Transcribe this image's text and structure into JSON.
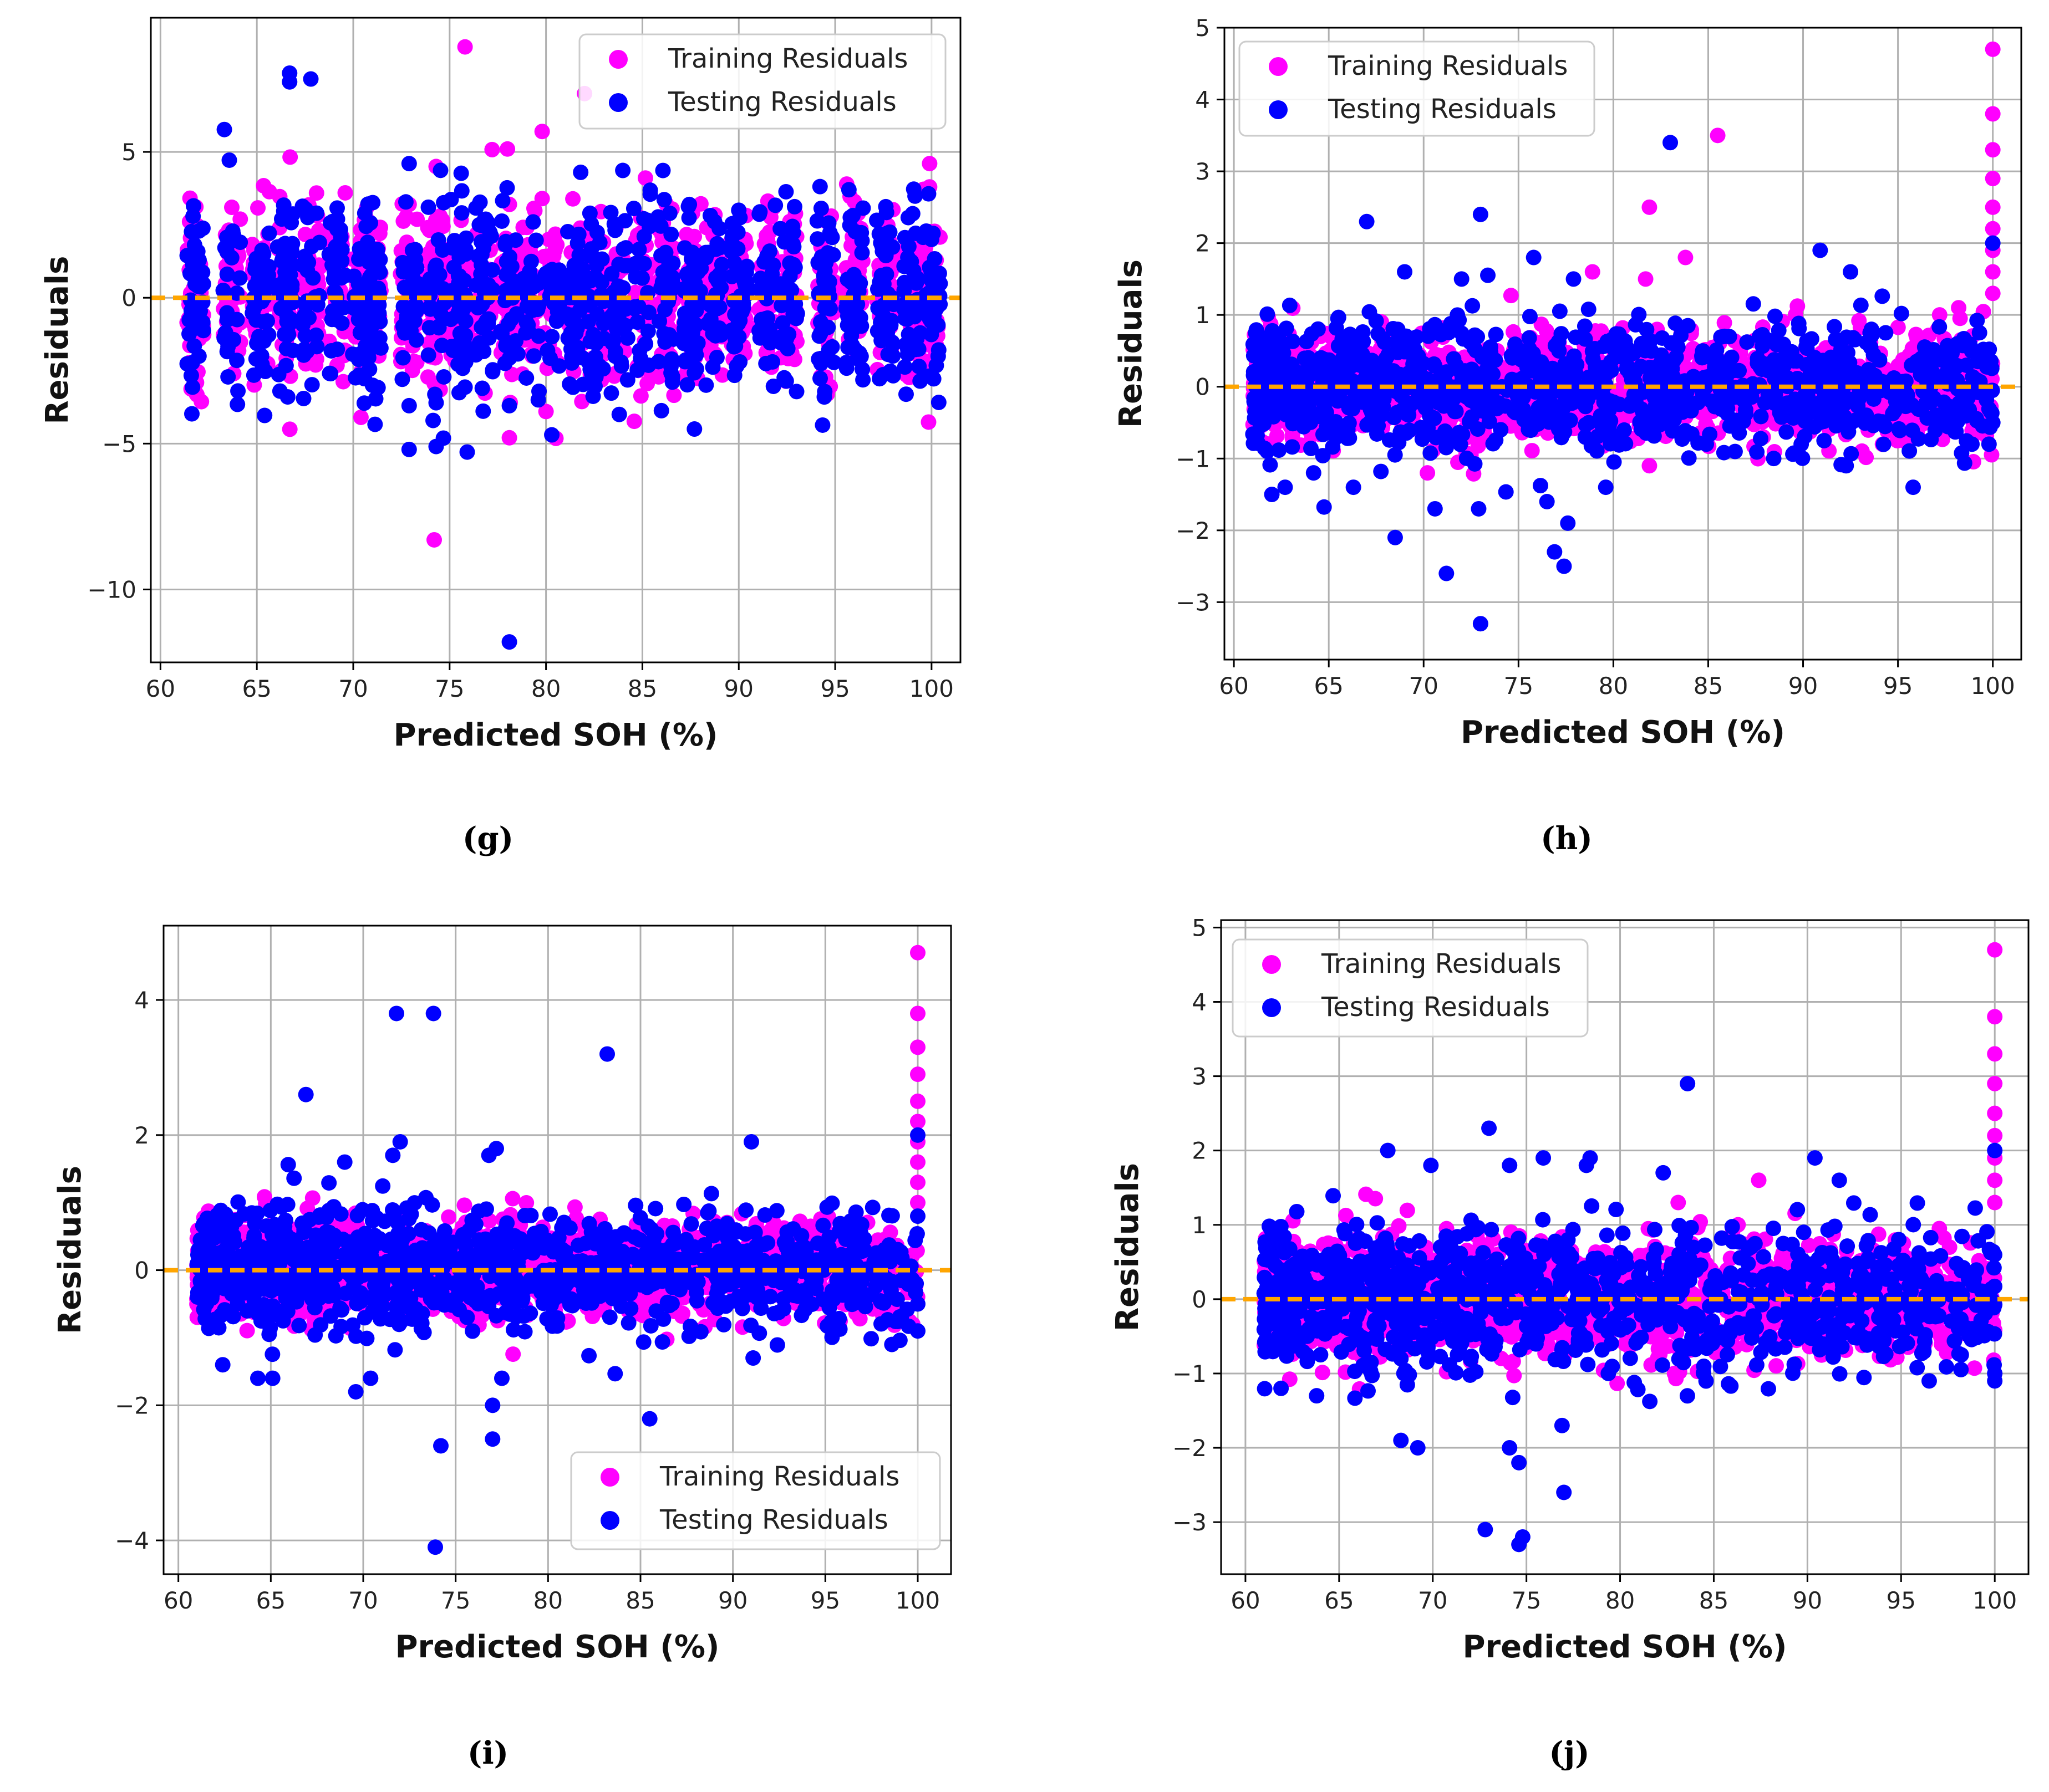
{
  "figure": {
    "captions": [
      "(g)",
      "(h)",
      "(i)",
      "(j)"
    ]
  },
  "colors": {
    "training": "#ff00ff",
    "testing": "#0000ff",
    "zero_line": "#ffa500",
    "grid": "#b0b0b0",
    "axis": "#000000"
  },
  "chart_data": [
    {
      "id": "g",
      "type": "scatter",
      "xlabel": "Predicted SOH (%)",
      "ylabel": "Residuals",
      "xlim": [
        59.5,
        101.5
      ],
      "ylim": [
        -12.5,
        9.6
      ],
      "xticks": [
        60,
        65,
        70,
        75,
        80,
        85,
        90,
        95,
        100
      ],
      "yticks": [
        -10,
        -5,
        0,
        5
      ],
      "ytick_labels": [
        "−10",
        "−5",
        "0",
        "5"
      ],
      "grid": true,
      "legend": "top-right",
      "zero_line": 0,
      "band_scale": 1.6,
      "series": [
        {
          "name": "Training Residuals",
          "color": "training",
          "points": [
            [
              75.8,
              8.6
            ],
            [
              74.2,
              -8.3
            ],
            [
              82.0,
              7.0
            ],
            [
              78.0,
              5.1
            ],
            [
              79.8,
              5.7
            ],
            [
              74.3,
              4.5
            ],
            [
              79.8,
              3.4
            ],
            [
              78.1,
              3.2
            ],
            [
              78.1,
              -4.8
            ],
            [
              70.4,
              -4.1
            ],
            [
              80.0,
              -3.9
            ],
            [
              87.6,
              2.9
            ],
            [
              96.0,
              3.3
            ],
            [
              99.9,
              4.6
            ],
            [
              99.9,
              3.8
            ],
            [
              63.7,
              3.1
            ],
            [
              72.9,
              3.2
            ],
            [
              74.5,
              2.8
            ],
            [
              94.8,
              2.8
            ],
            [
              87.6,
              -2.5
            ],
            [
              83.6,
              -2.6
            ],
            [
              63.8,
              -2.6
            ]
          ]
        },
        {
          "name": "Testing Residuals",
          "color": "testing",
          "points": [
            [
              66.7,
              7.7
            ],
            [
              66.7,
              7.4
            ],
            [
              67.8,
              7.5
            ],
            [
              72.9,
              4.6
            ],
            [
              81.8,
              4.3
            ],
            [
              78.1,
              -11.8
            ],
            [
              72.9,
              -5.2
            ],
            [
              74.3,
              -5.1
            ],
            [
              78.1,
              -3.7
            ],
            [
              79.6,
              -3.5
            ],
            [
              80.3,
              -4.7
            ],
            [
              83.8,
              -4.0
            ],
            [
              87.7,
              -4.5
            ],
            [
              72.9,
              -3.7
            ],
            [
              74.3,
              -3.6
            ],
            [
              66.6,
              -3.4
            ],
            [
              66.2,
              -3.2
            ],
            [
              71.0,
              -3.0
            ],
            [
              68.1,
              2.9
            ],
            [
              70.6,
              2.9
            ],
            [
              90.0,
              3.0
            ],
            [
              97.6,
              2.1
            ],
            [
              100.0,
              2.0
            ]
          ]
        }
      ]
    },
    {
      "id": "h",
      "type": "scatter",
      "xlabel": "Predicted SOH (%)",
      "ylabel": "Residuals",
      "xlim": [
        59.5,
        101.5
      ],
      "ylim": [
        -3.8,
        5.0
      ],
      "xticks": [
        60,
        65,
        70,
        75,
        80,
        85,
        90,
        95,
        100
      ],
      "yticks": [
        -3,
        -2,
        -1,
        0,
        1,
        2,
        3,
        4,
        5
      ],
      "ytick_labels": [
        "−3",
        "−2",
        "−1",
        "0",
        "1",
        "2",
        "3",
        "4",
        "5"
      ],
      "grid": true,
      "legend": "top-left",
      "zero_line": 0,
      "band_scale": 0.42,
      "series": [
        {
          "name": "Training Residuals",
          "color": "training",
          "points": [
            [
              100.0,
              4.7
            ],
            [
              100.0,
              3.8
            ],
            [
              100.0,
              3.3
            ],
            [
              100.0,
              2.9
            ],
            [
              100.0,
              2.5
            ],
            [
              100.0,
              2.2
            ],
            [
              100.0,
              1.9
            ],
            [
              100.0,
              1.6
            ],
            [
              100.0,
              1.3
            ],
            [
              85.5,
              3.5
            ],
            [
              81.9,
              2.5
            ],
            [
              83.8,
              1.8
            ],
            [
              78.9,
              1.6
            ],
            [
              81.7,
              1.5
            ],
            [
              89.6,
              1.0
            ],
            [
              98.2,
              1.1
            ],
            [
              97.1,
              0.8
            ],
            [
              81.9,
              -1.1
            ],
            [
              70.2,
              -1.2
            ],
            [
              87.9,
              -0.7
            ]
          ]
        },
        {
          "name": "Testing Residuals",
          "color": "testing",
          "points": [
            [
              83.0,
              3.4
            ],
            [
              73.0,
              2.4
            ],
            [
              67.0,
              2.3
            ],
            [
              90.9,
              1.9
            ],
            [
              69.0,
              1.6
            ],
            [
              92.5,
              1.6
            ],
            [
              75.8,
              1.8
            ],
            [
              77.9,
              1.5
            ],
            [
              72.0,
              1.5
            ],
            [
              100.0,
              2.0
            ],
            [
              73.0,
              -3.3
            ],
            [
              71.2,
              -2.6
            ],
            [
              77.4,
              -2.5
            ],
            [
              76.9,
              -2.3
            ],
            [
              68.5,
              -2.1
            ],
            [
              77.6,
              -1.9
            ],
            [
              70.6,
              -1.7
            ],
            [
              72.9,
              -1.7
            ],
            [
              76.5,
              -1.6
            ],
            [
              95.8,
              -1.4
            ],
            [
              79.6,
              -1.4
            ],
            [
              62.0,
              -1.5
            ],
            [
              62.7,
              -1.4
            ],
            [
              66.3,
              -1.4
            ],
            [
              64.2,
              -1.2
            ],
            [
              100.0,
              -0.5
            ],
            [
              99.8,
              -0.8
            ],
            [
              98.9,
              -0.8
            ],
            [
              89.9,
              -0.8
            ],
            [
              84.9,
              -0.8
            ]
          ]
        }
      ]
    },
    {
      "id": "i",
      "type": "scatter",
      "xlabel": "Predicted SOH (%)",
      "ylabel": "Residuals",
      "xlim": [
        59.2,
        101.8
      ],
      "ylim": [
        -4.5,
        5.1
      ],
      "xticks": [
        60,
        65,
        70,
        75,
        80,
        85,
        90,
        95,
        100
      ],
      "yticks": [
        -4,
        -2,
        0,
        2,
        4
      ],
      "ytick_labels": [
        "−4",
        "−2",
        "0",
        "2",
        "4"
      ],
      "grid": true,
      "legend": "bottom-right",
      "zero_line": 0,
      "band_scale": 0.42,
      "series": [
        {
          "name": "Training Residuals",
          "color": "training",
          "points": [
            [
              100.0,
              4.7
            ],
            [
              100.0,
              3.8
            ],
            [
              100.0,
              3.3
            ],
            [
              100.0,
              2.9
            ],
            [
              100.0,
              2.5
            ],
            [
              100.0,
              2.2
            ],
            [
              100.0,
              1.9
            ],
            [
              100.0,
              1.6
            ],
            [
              100.0,
              1.3
            ],
            [
              100.0,
              1.0
            ]
          ]
        },
        {
          "name": "Testing Residuals",
          "color": "testing",
          "points": [
            [
              73.8,
              3.8
            ],
            [
              71.8,
              3.8
            ],
            [
              83.2,
              3.2
            ],
            [
              66.9,
              2.6
            ],
            [
              91.0,
              1.9
            ],
            [
              72.0,
              1.9
            ],
            [
              71.6,
              1.7
            ],
            [
              76.8,
              1.7
            ],
            [
              77.2,
              1.8
            ],
            [
              69.0,
              1.6
            ],
            [
              73.9,
              -4.1
            ],
            [
              74.2,
              -2.6
            ],
            [
              77.0,
              -2.5
            ],
            [
              85.5,
              -2.2
            ],
            [
              77.0,
              -2.0
            ],
            [
              77.5,
              -1.6
            ],
            [
              69.6,
              -1.8
            ],
            [
              70.4,
              -1.6
            ],
            [
              65.1,
              -1.6
            ],
            [
              64.3,
              -1.6
            ],
            [
              100.0,
              2.0
            ],
            [
              100.0,
              0.8
            ],
            [
              100.0,
              -0.5
            ],
            [
              100.0,
              -0.9
            ],
            [
              98.6,
              -1.1
            ],
            [
              62.4,
              -1.4
            ]
          ]
        }
      ]
    },
    {
      "id": "j",
      "type": "scatter",
      "xlabel": "Predicted SOH (%)",
      "ylabel": "Residuals",
      "xlim": [
        58.7,
        101.8
      ],
      "ylim": [
        -3.7,
        5.1
      ],
      "xticks": [
        60,
        65,
        70,
        75,
        80,
        85,
        90,
        95,
        100
      ],
      "yticks": [
        -3,
        -2,
        -1,
        0,
        1,
        2,
        3,
        4,
        5
      ],
      "ytick_labels": [
        "−3",
        "−2",
        "−1",
        "0",
        "1",
        "2",
        "3",
        "4",
        "5"
      ],
      "grid": true,
      "legend": "top-left",
      "zero_line": 0,
      "band_scale": 0.45,
      "series": [
        {
          "name": "Training Residuals",
          "color": "training",
          "points": [
            [
              100.0,
              4.7
            ],
            [
              100.0,
              3.8
            ],
            [
              100.0,
              3.3
            ],
            [
              100.0,
              2.9
            ],
            [
              100.0,
              2.5
            ],
            [
              100.0,
              2.2
            ],
            [
              100.0,
              1.9
            ],
            [
              100.0,
              1.6
            ],
            [
              100.0,
              1.3
            ],
            [
              87.4,
              1.6
            ],
            [
              83.1,
              1.3
            ]
          ]
        },
        {
          "name": "Testing Residuals",
          "color": "testing",
          "points": [
            [
              83.6,
              2.9
            ],
            [
              73.0,
              2.3
            ],
            [
              67.6,
              2.0
            ],
            [
              75.9,
              1.9
            ],
            [
              90.4,
              1.9
            ],
            [
              78.2,
              1.8
            ],
            [
              78.4,
              1.9
            ],
            [
              69.9,
              1.8
            ],
            [
              74.1,
              1.8
            ],
            [
              82.3,
              1.7
            ],
            [
              91.7,
              1.6
            ],
            [
              74.6,
              -3.3
            ],
            [
              74.8,
              -3.2
            ],
            [
              72.8,
              -3.1
            ],
            [
              77.0,
              -2.6
            ],
            [
              74.6,
              -2.2
            ],
            [
              74.1,
              -2.0
            ],
            [
              69.2,
              -2.0
            ],
            [
              68.3,
              -1.9
            ],
            [
              76.9,
              -1.7
            ],
            [
              100.0,
              2.0
            ],
            [
              100.0,
              -1.0
            ],
            [
              100.0,
              -1.1
            ],
            [
              96.5,
              -1.1
            ],
            [
              63.8,
              -1.3
            ],
            [
              61.9,
              -1.2
            ]
          ]
        }
      ]
    }
  ]
}
